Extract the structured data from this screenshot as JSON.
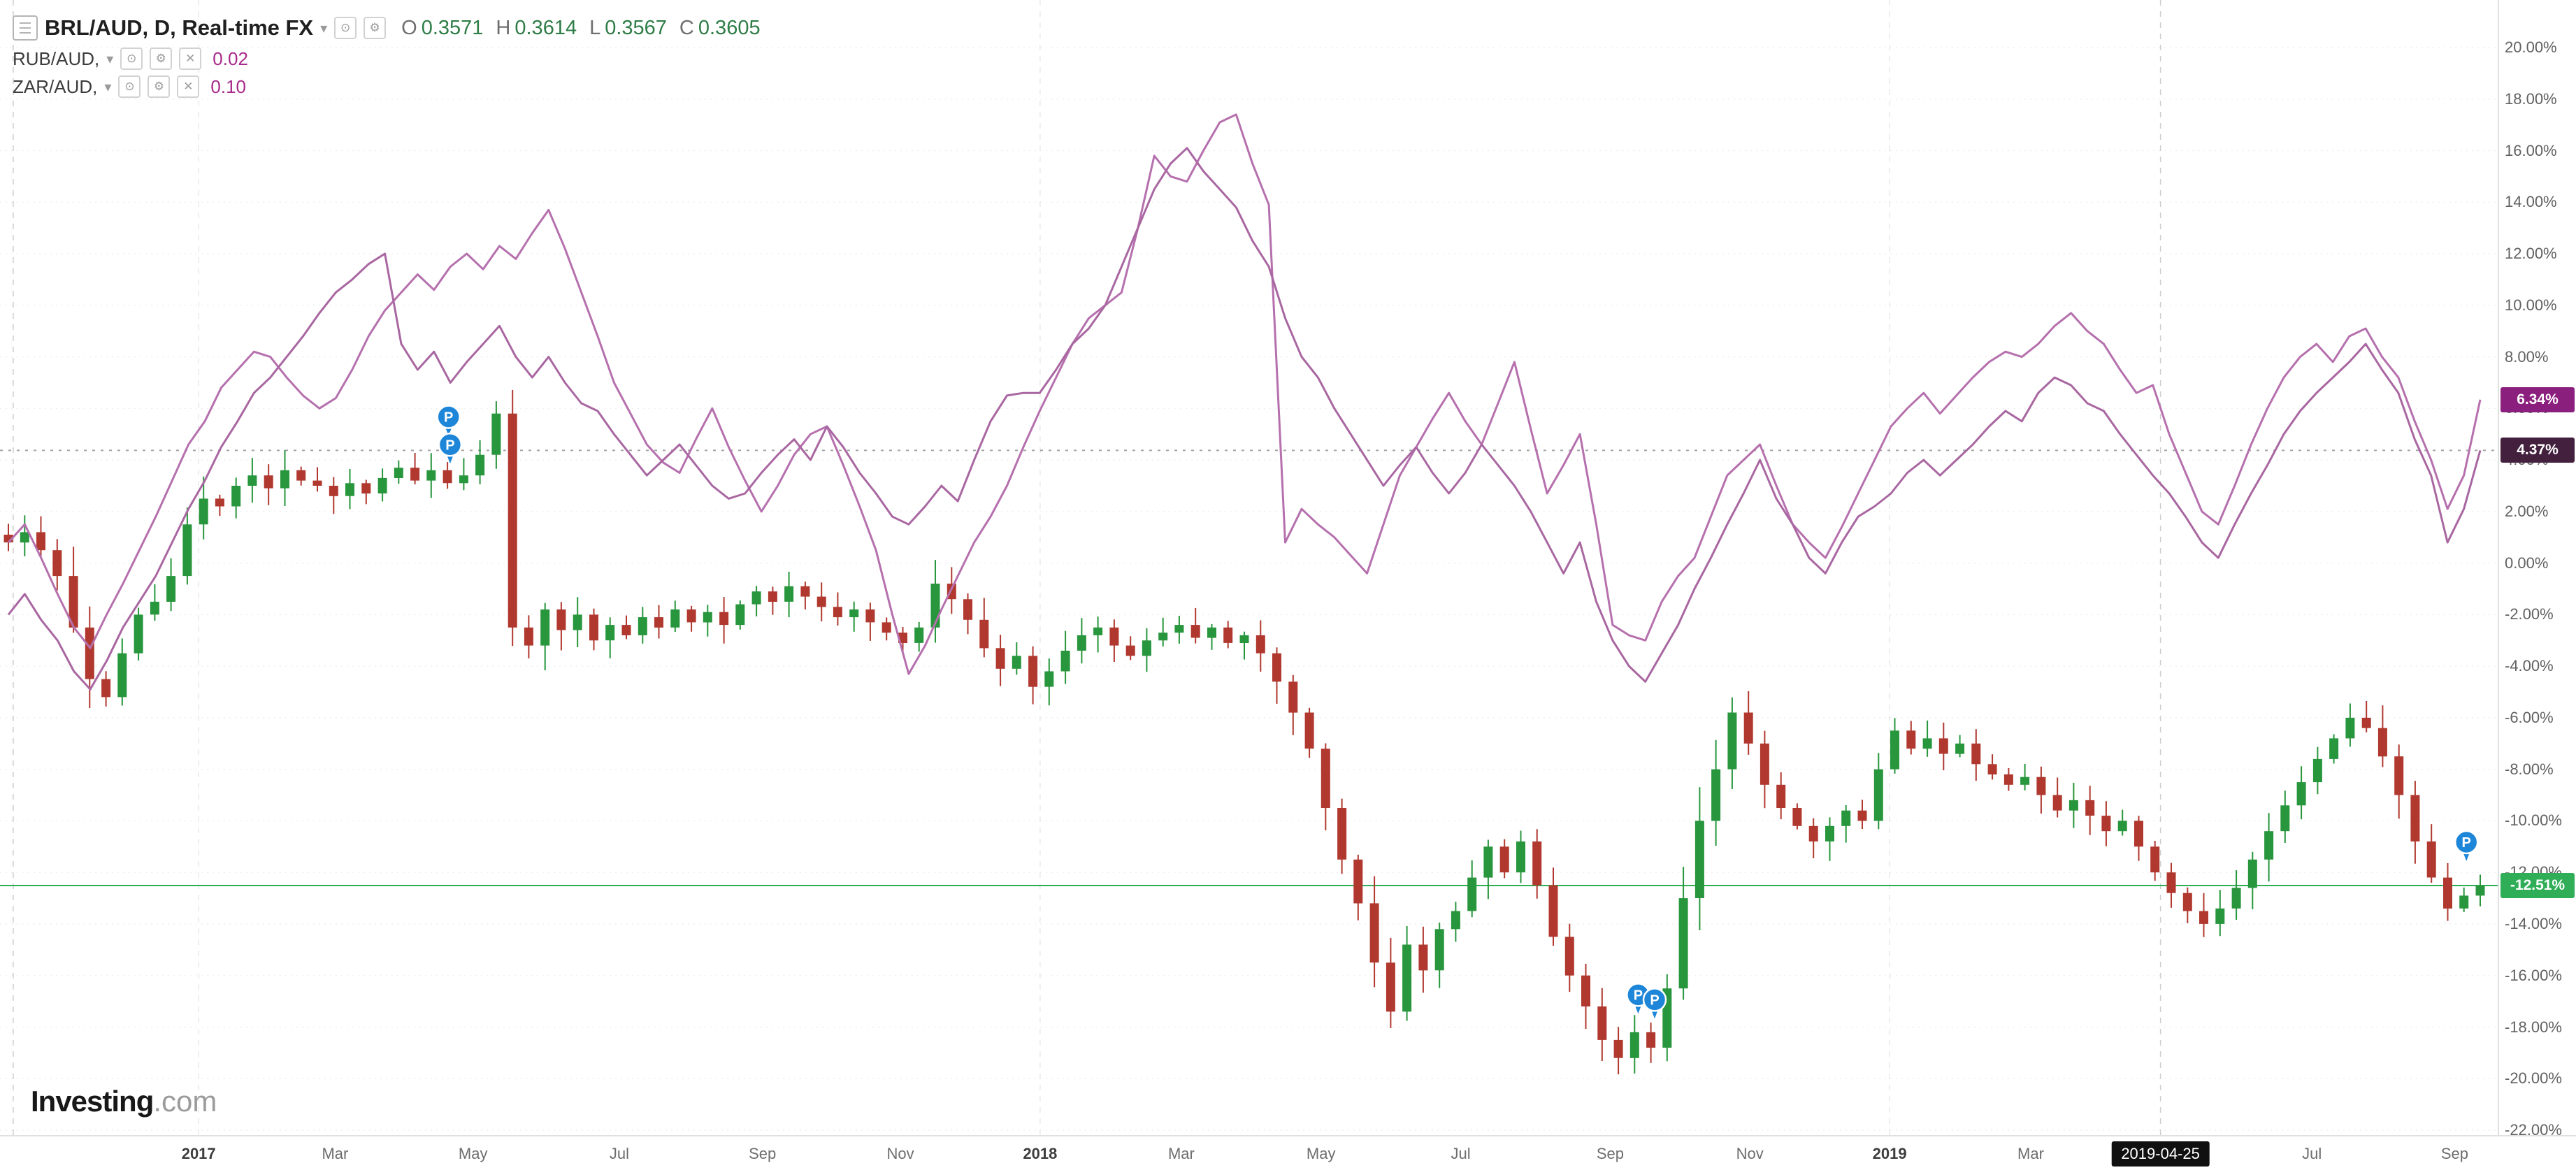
{
  "header": {
    "symbol_title": "BRL/AUD, D, Real-time FX",
    "ohlc": {
      "o_label": "O",
      "o": "0.3571",
      "h_label": "H",
      "h": "0.3614",
      "l_label": "L",
      "l": "0.3567",
      "c_label": "C",
      "c": "0.3605"
    },
    "overlays": [
      {
        "name": "RUB/AUD,",
        "value": "0.02"
      },
      {
        "name": "ZAR/AUD,",
        "value": "0.10"
      }
    ]
  },
  "logo": {
    "main": "Investing",
    "suffix": ".com"
  },
  "icons": {
    "chevron_down": "▾",
    "eye": "⊙",
    "gear": "⚙",
    "close": "✕",
    "pin_letter": "P"
  },
  "colors": {
    "ohlc_value": "#2e7d46",
    "overlay_value": "#a82a8a",
    "pin": "#1d86d8"
  },
  "chart_data": {
    "type": "candlestick+line",
    "title": "BRL/AUD, D, Real-time FX with RUB/AUD and ZAR/AUD overlays (percent change)",
    "ylabel": "% change",
    "y_axis": {
      "max": 20,
      "min": -22,
      "step": 2,
      "suffix": "%",
      "decimals": 2
    },
    "x_labels": [
      {
        "t": "2017",
        "f": 0.0795,
        "y": 1
      },
      {
        "t": "Mar",
        "f": 0.1341
      },
      {
        "t": "May",
        "f": 0.1893
      },
      {
        "t": "Jul",
        "f": 0.2478
      },
      {
        "t": "Sep",
        "f": 0.3051
      },
      {
        "t": "Nov",
        "f": 0.3603
      },
      {
        "t": "2018",
        "f": 0.4162,
        "y": 1
      },
      {
        "t": "Mar",
        "f": 0.4727
      },
      {
        "t": "May",
        "f": 0.5286
      },
      {
        "t": "Jul",
        "f": 0.5845
      },
      {
        "t": "Sep",
        "f": 0.6443
      },
      {
        "t": "Nov",
        "f": 0.7002
      },
      {
        "t": "2019",
        "f": 0.7561,
        "y": 1
      },
      {
        "t": "Mar",
        "f": 0.8126
      },
      {
        "t": "Jul",
        "f": 0.9251
      },
      {
        "t": "Sep",
        "f": 0.9822
      }
    ],
    "date_marker": {
      "label": "2019-04-25",
      "f": 0.8645,
      "bg": "#101010"
    },
    "v_guides": [
      {
        "f": 0.0053,
        "strong": 1
      },
      {
        "f": 0.0795
      },
      {
        "f": 0.4162
      },
      {
        "f": 0.7561
      },
      {
        "f": 0.8645,
        "strong": 1
      }
    ],
    "levels": [
      {
        "pct": 4.37,
        "color": "#a3a3a3",
        "dash": "4 8"
      },
      {
        "pct": -12.51,
        "color": "#2fae57",
        "dash": ""
      }
    ],
    "y_badges": [
      {
        "text": "6.34%",
        "pct": 6.34,
        "bg": "#8a1f7d"
      },
      {
        "text": "4.37%",
        "pct": 4.37,
        "bg": "#43203e"
      },
      {
        "text": "-12.51%",
        "pct": -12.51,
        "bg": "#2fae57"
      }
    ],
    "markers": [
      {
        "f": 0.1795,
        "pct": 5.67
      },
      {
        "f": 0.1801,
        "pct": 4.59
      },
      {
        "f": 0.6555,
        "pct": -16.75
      },
      {
        "f": 0.6621,
        "pct": -16.94
      },
      {
        "f": 0.9869,
        "pct": -10.83
      }
    ],
    "candles": {
      "name": "BRL/AUD",
      "up": "#27963c",
      "down": "#b0382f",
      "last_pct": -12.51,
      "closes": [
        0.8,
        1.2,
        0.5,
        -0.5,
        -2.5,
        -4.5,
        -5.2,
        -3.5,
        -2.0,
        -1.5,
        -0.5,
        1.5,
        2.5,
        2.2,
        3.0,
        3.4,
        2.9,
        3.6,
        3.2,
        3.0,
        2.6,
        3.1,
        2.7,
        3.3,
        3.7,
        3.2,
        3.6,
        3.1,
        3.4,
        4.2,
        5.8,
        -2.5,
        -3.2,
        -1.8,
        -2.6,
        -2.0,
        -3.0,
        -2.4,
        -2.8,
        -2.1,
        -2.5,
        -1.8,
        -2.3,
        -1.9,
        -2.4,
        -1.6,
        -1.1,
        -1.5,
        -0.9,
        -1.3,
        -1.7,
        -2.1,
        -1.8,
        -2.3,
        -2.7,
        -3.1,
        -2.5,
        -0.8,
        -1.4,
        -2.2,
        -3.3,
        -4.1,
        -3.6,
        -4.8,
        -4.2,
        -3.4,
        -2.8,
        -2.5,
        -3.2,
        -3.6,
        -3.0,
        -2.7,
        -2.4,
        -2.9,
        -2.5,
        -3.1,
        -2.8,
        -3.5,
        -4.6,
        -5.8,
        -7.2,
        -9.5,
        -11.5,
        -13.2,
        -15.5,
        -17.4,
        -14.8,
        -15.8,
        -14.2,
        -13.5,
        -12.2,
        -11.0,
        -12.0,
        -10.8,
        -12.5,
        -14.5,
        -16.0,
        -17.2,
        -18.5,
        -19.2,
        -18.2,
        -18.8,
        -16.5,
        -13.0,
        -10.0,
        -8.0,
        -5.8,
        -7.0,
        -8.6,
        -9.5,
        -10.2,
        -10.8,
        -10.2,
        -9.6,
        -10.0,
        -8.0,
        -6.5,
        -7.2,
        -6.8,
        -7.4,
        -7.0,
        -7.8,
        -8.2,
        -8.6,
        -8.3,
        -9.0,
        -9.6,
        -9.2,
        -9.8,
        -10.4,
        -10.0,
        -11.0,
        -12.0,
        -12.8,
        -13.5,
        -14.0,
        -13.4,
        -12.6,
        -11.5,
        -10.4,
        -9.4,
        -8.5,
        -7.6,
        -6.8,
        -6.0,
        -6.4,
        -7.5,
        -9.0,
        -10.8,
        -12.2,
        -13.4,
        -12.9,
        -12.51
      ]
    },
    "lines": [
      {
        "name": "RUB/AUD",
        "color": "#b570ad",
        "last_pct": 6.34,
        "values": [
          0.8,
          1.5,
          0.2,
          -1.2,
          -2.5,
          -3.3,
          -2.0,
          -0.8,
          0.5,
          1.8,
          3.2,
          4.6,
          5.5,
          6.8,
          7.5,
          8.2,
          8.0,
          7.2,
          6.5,
          6.0,
          6.4,
          7.5,
          8.8,
          9.8,
          10.5,
          11.2,
          10.6,
          11.5,
          12.0,
          11.4,
          12.3,
          11.8,
          12.8,
          13.7,
          12.2,
          10.5,
          8.8,
          7.0,
          5.8,
          4.6,
          3.9,
          3.5,
          4.8,
          6.0,
          4.5,
          3.2,
          2.0,
          3.0,
          4.2,
          5.0,
          5.3,
          3.8,
          2.2,
          0.5,
          -2.0,
          -4.3,
          -3.2,
          -1.8,
          -0.5,
          0.8,
          1.8,
          3.0,
          4.5,
          5.9,
          7.2,
          8.5,
          9.5,
          10.0,
          10.5,
          13.0,
          15.8,
          15.0,
          14.8,
          16.0,
          17.1,
          17.4,
          15.5,
          13.9,
          0.8,
          2.1,
          1.5,
          1.0,
          0.3,
          -0.4,
          1.5,
          3.4,
          4.5,
          5.6,
          6.6,
          5.5,
          4.6,
          6.2,
          7.8,
          5.2,
          2.7,
          3.8,
          5.0,
          1.5,
          -2.4,
          -2.8,
          -3.0,
          -1.5,
          -0.5,
          0.2,
          1.8,
          3.4,
          4.0,
          4.6,
          3.0,
          1.5,
          0.8,
          0.2,
          1.4,
          2.7,
          4.0,
          5.3,
          6.0,
          6.6,
          5.8,
          6.5,
          7.2,
          7.8,
          8.2,
          8.0,
          8.5,
          9.2,
          9.7,
          9.0,
          8.5,
          7.5,
          6.6,
          6.9,
          5.0,
          3.5,
          2.0,
          1.5,
          3.0,
          4.6,
          6.0,
          7.2,
          8.0,
          8.5,
          7.8,
          8.8,
          9.1,
          8.0,
          7.2,
          5.5,
          4.0,
          2.1,
          3.4,
          6.34
        ]
      },
      {
        "name": "ZAR/AUD",
        "color": "#a967a1",
        "last_pct": 4.37,
        "values": [
          -2.0,
          -1.2,
          -2.2,
          -3.0,
          -4.2,
          -4.9,
          -3.8,
          -2.5,
          -1.5,
          -0.5,
          0.8,
          2.1,
          3.2,
          4.5,
          5.5,
          6.6,
          7.2,
          8.0,
          8.8,
          9.7,
          10.5,
          11.0,
          11.6,
          12.0,
          8.5,
          7.5,
          8.2,
          7.0,
          7.8,
          8.5,
          9.2,
          8.0,
          7.2,
          8.0,
          7.0,
          6.2,
          5.9,
          5.0,
          4.2,
          3.4,
          4.0,
          4.6,
          3.8,
          3.0,
          2.5,
          2.7,
          3.5,
          4.2,
          4.8,
          4.0,
          5.3,
          4.5,
          3.5,
          2.7,
          1.8,
          1.5,
          2.2,
          3.0,
          2.4,
          4.0,
          5.5,
          6.5,
          6.6,
          6.6,
          7.5,
          8.5,
          9.1,
          10.0,
          11.5,
          13.0,
          14.5,
          15.5,
          16.1,
          15.2,
          14.5,
          13.8,
          12.5,
          11.5,
          9.5,
          8.0,
          7.2,
          6.0,
          5.0,
          4.0,
          3.0,
          3.8,
          4.5,
          3.5,
          2.7,
          3.5,
          4.6,
          3.8,
          3.0,
          2.0,
          0.8,
          -0.4,
          0.8,
          -1.5,
          -3.0,
          -4.0,
          -4.6,
          -3.5,
          -2.4,
          -1.0,
          0.2,
          1.5,
          2.7,
          4.0,
          2.5,
          1.5,
          0.2,
          -0.4,
          0.8,
          1.8,
          2.2,
          2.7,
          3.5,
          4.0,
          3.4,
          4.0,
          4.6,
          5.3,
          5.9,
          5.5,
          6.6,
          7.2,
          6.9,
          6.2,
          5.9,
          5.0,
          4.2,
          3.4,
          2.7,
          1.8,
          0.8,
          0.2,
          1.5,
          2.7,
          3.8,
          5.0,
          5.9,
          6.6,
          7.2,
          7.8,
          8.5,
          7.5,
          6.6,
          4.8,
          3.4,
          0.8,
          2.1,
          4.37
        ]
      }
    ]
  }
}
